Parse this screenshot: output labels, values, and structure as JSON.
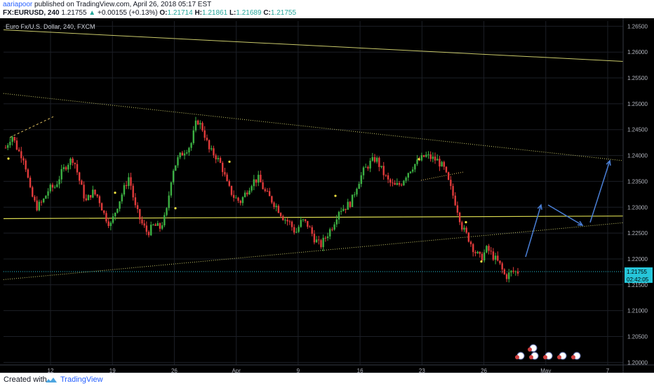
{
  "header": {
    "author": "aariapoor",
    "published_text": "published on TradingView.com, April 26, 2018 05:17 EST",
    "symbol": "FX:EURUSD, 240",
    "last": "1.21755",
    "change_arrow": "▲",
    "change": "+0.00155 (+0.13%)",
    "o_label": "O:",
    "o_value": "1.21714",
    "h_label": "H:",
    "h_value": "1.21861",
    "l_label": "L:",
    "l_value": "1.21689",
    "c_label": "C:",
    "c_value": "1.21755"
  },
  "chart_data": {
    "type": "candlestick",
    "title": "Euro Fx/U.S. Dollar, 240, FXCM",
    "y_ticks": [
      "1.26500",
      "1.26000",
      "1.25500",
      "1.25000",
      "1.24500",
      "1.24000",
      "1.23500",
      "1.23000",
      "1.22500",
      "1.22000",
      "1.21500",
      "1.21000",
      "1.20500",
      "1.20000"
    ],
    "ylim": [
      1.1995,
      1.266
    ],
    "x_ticks": [
      "12",
      "19",
      "26",
      "Apr",
      "9",
      "16",
      "23",
      "26",
      "May",
      "7"
    ],
    "last_price_label": "1.21755",
    "countdown_label": "02:42:05",
    "price_path": [
      [
        1.2415,
        1.244
      ],
      [
        1.241,
        1.2395
      ],
      [
        1.233,
        1.23
      ],
      [
        1.231,
        1.2335
      ],
      [
        1.234,
        1.2365
      ],
      [
        1.2385,
        1.2395
      ],
      [
        1.235,
        1.231
      ],
      [
        1.233,
        1.232
      ],
      [
        1.2285,
        1.2265
      ],
      [
        1.23,
        1.233
      ],
      [
        1.236,
        1.23
      ],
      [
        1.227,
        1.225
      ],
      [
        1.2265,
        1.226
      ],
      [
        1.2285,
        1.237
      ],
      [
        1.2395,
        1.241
      ],
      [
        1.242,
        1.247
      ],
      [
        1.245,
        1.241
      ],
      [
        1.24,
        1.238
      ],
      [
        1.234,
        1.232
      ],
      [
        1.231,
        1.233
      ],
      [
        1.235,
        1.2355
      ],
      [
        1.233,
        1.2315
      ],
      [
        1.23,
        1.228
      ],
      [
        1.227,
        1.225
      ],
      [
        1.2275,
        1.2265
      ],
      [
        1.224,
        1.2225
      ],
      [
        1.2245,
        1.2265
      ],
      [
        1.2295,
        1.23
      ],
      [
        1.231,
        1.2345
      ],
      [
        1.237,
        1.2385
      ],
      [
        1.2395,
        1.237
      ],
      [
        1.235,
        1.234
      ],
      [
        1.2345,
        1.2365
      ],
      [
        1.238,
        1.239
      ],
      [
        1.24,
        1.2395
      ],
      [
        1.239,
        1.2375
      ],
      [
        1.234,
        1.2305
      ],
      [
        1.226,
        1.224
      ],
      [
        1.2215,
        1.22
      ],
      [
        1.222,
        1.2205
      ],
      [
        1.219,
        1.2165
      ],
      [
        1.2175,
        1.2175
      ]
    ],
    "annotations": [
      "upper descending trendline",
      "dotted resistance trendline",
      "horizontal support line",
      "rising dotted support",
      "projected path arrows"
    ]
  },
  "footer": {
    "created_with": "Created with",
    "brand": "TradingView"
  }
}
